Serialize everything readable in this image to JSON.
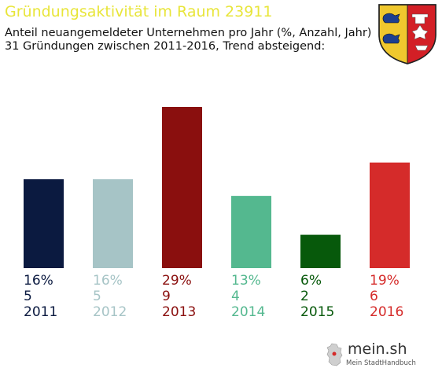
{
  "header": {
    "title": "Gründungsaktivität im Raum 23911",
    "subtitle_line1": "Anteil neuangemeldeter Unternehmen pro Jahr (%, Anzahl, Jahr)",
    "subtitle_line2": "31 Gründungen zwischen 2011-2016, Trend absteigend:"
  },
  "crest_icon": "schleswig-holstein-coat-of-arms",
  "chart_data": {
    "type": "bar",
    "title": "Gründungsaktivität im Raum 23911",
    "categories": [
      "2011",
      "2012",
      "2013",
      "2014",
      "2015",
      "2016"
    ],
    "series": [
      {
        "values": [
          16,
          16,
          29,
          13,
          6,
          19
        ],
        "unit": "%"
      }
    ],
    "percent_labels": [
      "16%",
      "16%",
      "29%",
      "13%",
      "6%",
      "19%"
    ],
    "counts": [
      5,
      5,
      9,
      4,
      2,
      6
    ],
    "colors": [
      "#0b1a40",
      "#a6c4c6",
      "#8a0f0e",
      "#54b88f",
      "#07590b",
      "#d52b2a"
    ],
    "ylim": [
      0,
      29
    ],
    "grid": false,
    "legend": "none"
  },
  "footer": {
    "brand_name": "mein.sh",
    "brand_tagline": "Mein StadtHandbuch",
    "brand_icon": "germany-map-icon"
  }
}
